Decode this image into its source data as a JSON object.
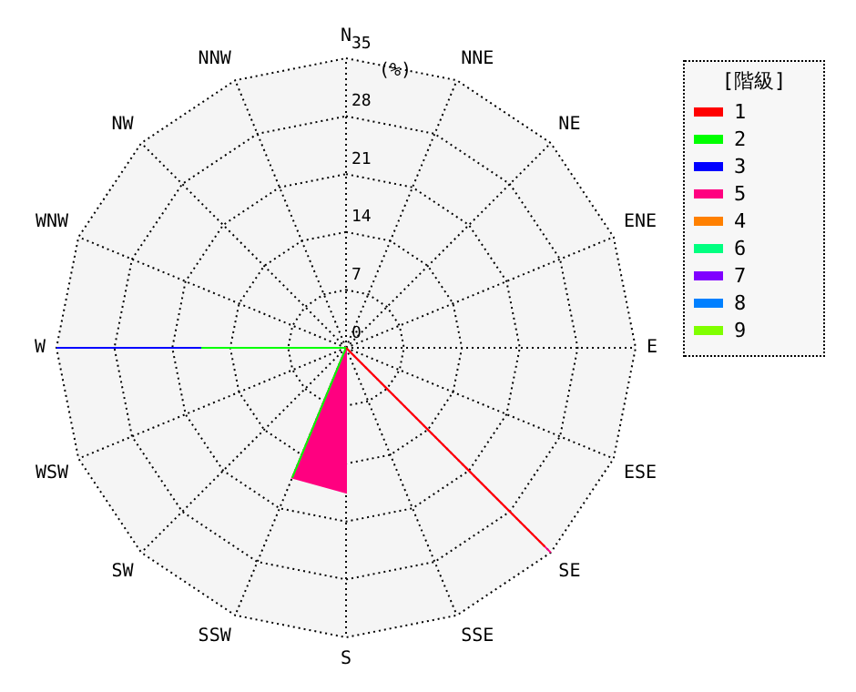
{
  "chart_data": {
    "type": "radar",
    "categories": [
      "N",
      "NNE",
      "NE",
      "ENE",
      "E",
      "ESE",
      "SE",
      "SSE",
      "S",
      "SSW",
      "SW",
      "WSW",
      "W",
      "WNW",
      "NW",
      "NNW"
    ],
    "ylim": [
      0,
      35
    ],
    "yticks": [
      0,
      7,
      14,
      21,
      28,
      35
    ],
    "ylabel": "(%)",
    "legend_title": "[階級]",
    "legend": "right",
    "grid": true,
    "line_style": "dotted",
    "series": [
      {
        "name": "1",
        "color": "#ff0000",
        "values": [
          0,
          0,
          0,
          0,
          0,
          0,
          34,
          0,
          0,
          0,
          0,
          0,
          0,
          0,
          0,
          0
        ]
      },
      {
        "name": "2",
        "color": "#00ff00",
        "values": [
          0,
          0,
          0,
          0,
          0,
          0,
          0,
          0,
          0,
          17,
          0,
          0,
          17.5,
          0,
          0,
          0
        ]
      },
      {
        "name": "3",
        "color": "#0000ff",
        "values": [
          0,
          0,
          0,
          0,
          0,
          0,
          0,
          0,
          0,
          0,
          0,
          0,
          35,
          0,
          0,
          0
        ]
      },
      {
        "name": "5",
        "color": "#ff0080",
        "values": [
          0,
          0,
          0,
          0,
          0,
          0,
          35,
          0,
          17.5,
          17,
          0,
          0,
          0,
          0,
          0,
          0
        ]
      },
      {
        "name": "4",
        "color": "#ff8000",
        "values": [
          null,
          null,
          null,
          null,
          null,
          null,
          null,
          null,
          null,
          null,
          null,
          null,
          null,
          null,
          null,
          null
        ]
      },
      {
        "name": "6",
        "color": "#00ff80",
        "values": [
          null,
          null,
          null,
          null,
          null,
          null,
          null,
          null,
          null,
          null,
          null,
          null,
          null,
          null,
          null,
          null
        ]
      },
      {
        "name": "7",
        "color": "#8000ff",
        "values": [
          null,
          null,
          null,
          null,
          null,
          null,
          null,
          null,
          null,
          null,
          null,
          null,
          null,
          null,
          null,
          null
        ]
      },
      {
        "name": "8",
        "color": "#0080ff",
        "values": [
          null,
          null,
          null,
          null,
          null,
          null,
          null,
          null,
          null,
          null,
          null,
          null,
          null,
          null,
          null,
          null
        ]
      },
      {
        "name": "9",
        "color": "#80ff00",
        "values": [
          null,
          null,
          null,
          null,
          null,
          null,
          null,
          null,
          null,
          null,
          null,
          null,
          null,
          null,
          null,
          null
        ]
      }
    ]
  }
}
